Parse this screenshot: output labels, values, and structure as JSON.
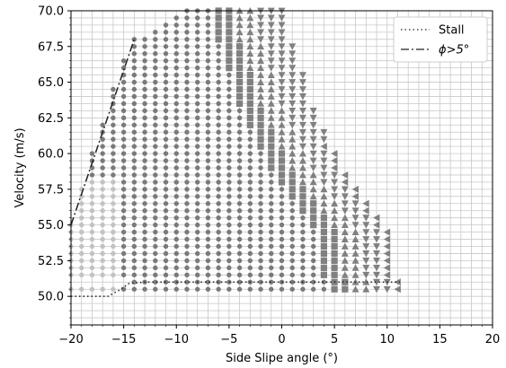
{
  "chart_data": {
    "type": "scatter",
    "title": "",
    "xlabel": "Side Slipe angle (°)",
    "ylabel": "Velocity (m/s)",
    "xlim": [
      -20,
      20
    ],
    "ylim": [
      48.0,
      70.0
    ],
    "x_ticks": [
      -20,
      -15,
      -10,
      -5,
      0,
      5,
      10,
      15,
      20
    ],
    "x_tick_labels": [
      "−20",
      "−15",
      "−10",
      "−5",
      "0",
      "5",
      "10",
      "15",
      "20"
    ],
    "y_ticks": [
      50.0,
      52.5,
      55.0,
      57.5,
      60.0,
      62.5,
      65.0,
      67.5,
      70.0
    ],
    "y_tick_labels": [
      "50.0",
      "52.5",
      "55.0",
      "57.5",
      "60.0",
      "62.5",
      "65.0",
      "67.5",
      "70.0"
    ],
    "grid": true,
    "grid_step": {
      "x": 1,
      "y": 0.5
    },
    "legend_position": "top-right",
    "legend": [
      {
        "label": "Stall",
        "style": "dotted"
      },
      {
        "label": "ϕ>5°",
        "style": "dashdot"
      }
    ],
    "lines": [
      {
        "name": "Stall",
        "style": "dotted",
        "color": "#222222",
        "points": [
          [
            -20,
            50.0
          ],
          [
            -16.5,
            50.0
          ],
          [
            -15.5,
            50.4
          ],
          [
            -14.5,
            50.9
          ],
          [
            -13,
            51.0
          ],
          [
            0,
            51.0
          ],
          [
            8,
            51.0
          ],
          [
            11.2,
            51.0
          ]
        ]
      },
      {
        "name": "ϕ>5°",
        "style": "dashdot",
        "color": "#222222",
        "points": [
          [
            -20,
            55.0
          ],
          [
            -14,
            68.0
          ]
        ]
      }
    ],
    "markers": {
      "colors": {
        "circle_light": "#c2c2c2",
        "circle_dark": "#7a7a7a",
        "square": "#808080",
        "triangle": "#808080"
      },
      "row_ranges": [
        {
          "y": 50.5,
          "x": [
            -20,
            11
          ]
        },
        {
          "y": 51.0,
          "x": [
            -14,
            11
          ]
        },
        {
          "y": 51.5,
          "x": [
            -20,
            10
          ]
        },
        {
          "y": 52.0,
          "x": [
            -20,
            10
          ]
        },
        {
          "y": 52.5,
          "x": [
            -20,
            10
          ]
        },
        {
          "y": 53.0,
          "x": [
            -20,
            10
          ]
        },
        {
          "y": 53.5,
          "x": [
            -20,
            10
          ]
        },
        {
          "y": 54.0,
          "x": [
            -20,
            10
          ]
        },
        {
          "y": 54.5,
          "x": [
            -20,
            10
          ]
        },
        {
          "y": 55.0,
          "x": [
            -20,
            9
          ]
        },
        {
          "y": 55.5,
          "x": [
            -19,
            9
          ]
        },
        {
          "y": 56.0,
          "x": [
            -19,
            8
          ]
        },
        {
          "y": 56.5,
          "x": [
            -19,
            8
          ]
        },
        {
          "y": 57.0,
          "x": [
            -19,
            7
          ]
        },
        {
          "y": 57.5,
          "x": [
            -19,
            7
          ]
        },
        {
          "y": 58.0,
          "x": [
            -18,
            6
          ]
        },
        {
          "y": 58.5,
          "x": [
            -18,
            6
          ]
        },
        {
          "y": 59.0,
          "x": [
            -18,
            5
          ]
        },
        {
          "y": 59.5,
          "x": [
            -18,
            5
          ]
        },
        {
          "y": 60.0,
          "x": [
            -18,
            5
          ]
        },
        {
          "y": 60.5,
          "x": [
            -17,
            4
          ]
        },
        {
          "y": 61.0,
          "x": [
            -17,
            4
          ]
        },
        {
          "y": 61.5,
          "x": [
            -17,
            4
          ]
        },
        {
          "y": 62.0,
          "x": [
            -17,
            3
          ]
        },
        {
          "y": 62.5,
          "x": [
            -16,
            3
          ]
        },
        {
          "y": 63.0,
          "x": [
            -16,
            3
          ]
        },
        {
          "y": 63.5,
          "x": [
            -16,
            2
          ]
        },
        {
          "y": 64.0,
          "x": [
            -16,
            2
          ]
        },
        {
          "y": 64.5,
          "x": [
            -16,
            2
          ]
        },
        {
          "y": 65.0,
          "x": [
            -15,
            2
          ]
        },
        {
          "y": 65.5,
          "x": [
            -15,
            2
          ]
        },
        {
          "y": 66.0,
          "x": [
            -15,
            1
          ]
        },
        {
          "y": 66.5,
          "x": [
            -15,
            1
          ]
        },
        {
          "y": 67.0,
          "x": [
            -14,
            1
          ]
        },
        {
          "y": 67.5,
          "x": [
            -14,
            1
          ]
        },
        {
          "y": 68.0,
          "x": [
            -14,
            0
          ]
        },
        {
          "y": 68.5,
          "x": [
            -12,
            0
          ]
        },
        {
          "y": 69.0,
          "x": [
            -11,
            0
          ]
        },
        {
          "y": 69.5,
          "x": [
            -10,
            0
          ]
        },
        {
          "y": 70.0,
          "x": [
            -9,
            0
          ]
        }
      ]
    }
  }
}
